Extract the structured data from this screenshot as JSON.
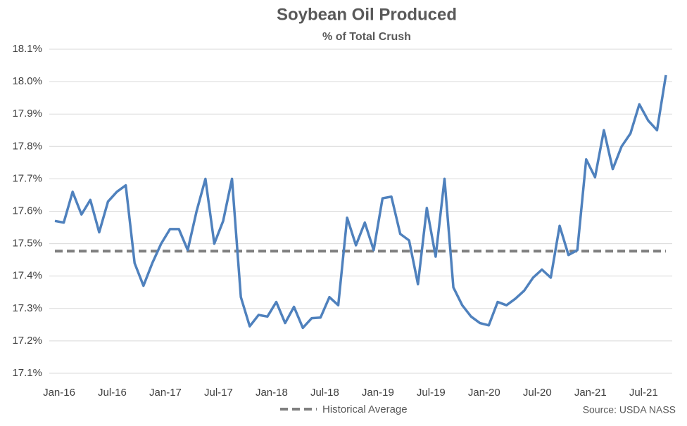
{
  "chart_data": {
    "type": "line",
    "title": "Soybean Oil Produced",
    "subtitle": "% of Total Crush",
    "source": "Source: USDA NASS",
    "categories": [
      "Jan-16",
      null,
      null,
      null,
      null,
      null,
      "Jul-16",
      null,
      null,
      null,
      null,
      null,
      "Jan-17",
      null,
      null,
      null,
      null,
      null,
      "Jul-17",
      null,
      null,
      null,
      null,
      null,
      "Jan-18",
      null,
      null,
      null,
      null,
      null,
      "Jul-18",
      null,
      null,
      null,
      null,
      null,
      "Jan-19",
      null,
      null,
      null,
      null,
      null,
      "Jul-19",
      null,
      null,
      null,
      null,
      null,
      "Jan-20",
      null,
      null,
      null,
      null,
      null,
      "Jul-20",
      null,
      null,
      null,
      null,
      null,
      "Jan-21",
      null,
      null,
      null,
      null,
      null,
      "Jul-21",
      null,
      null,
      null
    ],
    "series": [
      {
        "name": "Soybean Oil Produced",
        "color": "#4f81bd",
        "values": [
          17.57,
          17.565,
          17.66,
          17.59,
          17.635,
          17.535,
          17.63,
          17.66,
          17.68,
          17.44,
          17.37,
          17.44,
          17.5,
          17.545,
          17.545,
          17.48,
          17.6,
          17.7,
          17.5,
          17.57,
          17.7,
          17.335,
          17.245,
          17.28,
          17.275,
          17.32,
          17.255,
          17.305,
          17.24,
          17.27,
          17.272,
          17.335,
          17.31,
          17.58,
          17.495,
          17.565,
          17.48,
          17.64,
          17.645,
          17.53,
          17.51,
          17.375,
          17.61,
          17.46,
          17.7,
          17.365,
          17.31,
          17.275,
          17.255,
          17.248,
          17.32,
          17.31,
          17.33,
          17.355,
          17.395,
          17.42,
          17.395,
          17.555,
          17.465,
          17.48,
          17.76,
          17.705,
          17.85,
          17.73,
          17.8,
          17.84,
          17.93,
          17.88,
          17.85,
          18.02
        ]
      }
    ],
    "reference": {
      "name": "Historical Average",
      "value": 17.477,
      "color": "#7f7f7f"
    },
    "ylim": [
      17.1,
      18.1
    ],
    "yticks": [
      {
        "value": 17.1,
        "label": "17.1%"
      },
      {
        "value": 17.2,
        "label": "17.2%"
      },
      {
        "value": 17.3,
        "label": "17.3%"
      },
      {
        "value": 17.4,
        "label": "17.4%"
      },
      {
        "value": 17.5,
        "label": "17.5%"
      },
      {
        "value": 17.6,
        "label": "17.6%"
      },
      {
        "value": 17.7,
        "label": "17.7%"
      },
      {
        "value": 17.8,
        "label": "17.8%"
      },
      {
        "value": 17.9,
        "label": "17.9%"
      },
      {
        "value": 18.0,
        "label": "18.0%"
      },
      {
        "value": 18.1,
        "label": "18.1%"
      }
    ],
    "grid": true
  }
}
